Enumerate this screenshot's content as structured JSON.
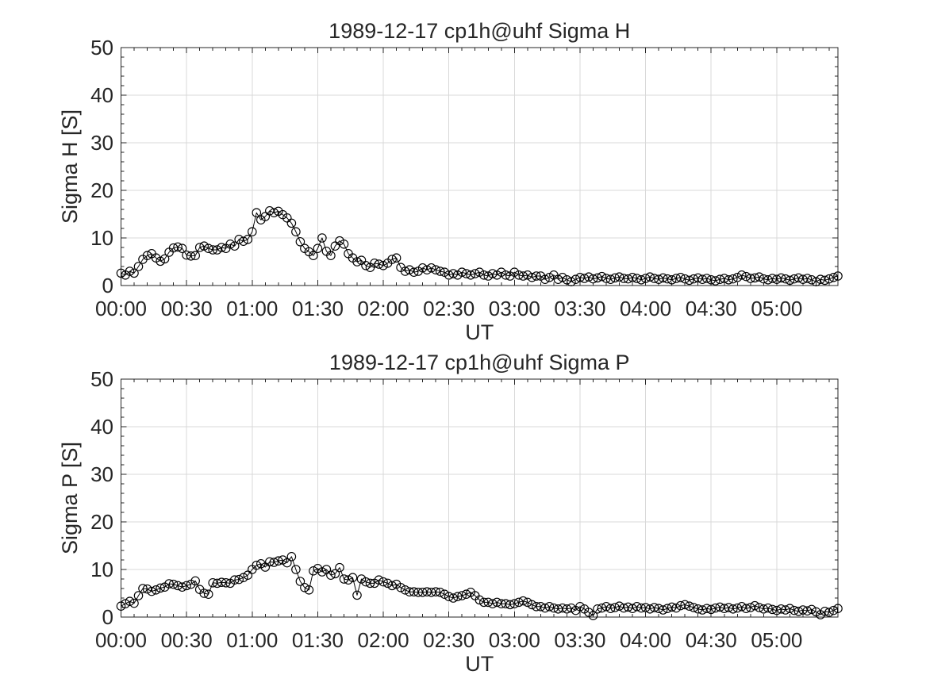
{
  "figure": {
    "background_color": "#ffffff",
    "axis_color": "#262626",
    "grid_color": "#d9d9d9",
    "data_color": "#000000"
  },
  "chart_data": [
    {
      "type": "line",
      "title": "1989-12-17  cp1h@uhf Sigma H",
      "xlabel": "UT",
      "ylabel": "Sigma H [S]",
      "ylim": [
        0,
        50
      ],
      "yticks": [
        0,
        10,
        20,
        30,
        40,
        50
      ],
      "ytick_labels": [
        "0",
        "10",
        "20",
        "30",
        "40",
        "50"
      ],
      "xlim_minutes": [
        0,
        328
      ],
      "xticks_minutes": [
        0,
        30,
        60,
        90,
        120,
        150,
        180,
        210,
        240,
        270,
        300
      ],
      "xtick_labels": [
        "00:00",
        "00:30",
        "01:00",
        "01:30",
        "02:00",
        "02:30",
        "03:00",
        "03:30",
        "04:00",
        "04:30",
        "05:00"
      ],
      "x_minor_step_minutes": 6,
      "y_minor_step": 2,
      "grid": true,
      "marker": "open-circle",
      "x_start": "00:00",
      "x_step_minutes": 2,
      "values": [
        2.6,
        2.2,
        3.0,
        2.6,
        4.0,
        5.5,
        6.3,
        6.7,
        5.8,
        5.1,
        5.6,
        7.0,
        7.9,
        8.1,
        7.8,
        6.4,
        6.2,
        6.3,
        8.0,
        8.3,
        7.8,
        7.5,
        7.5,
        8.0,
        7.8,
        8.7,
        8.3,
        9.7,
        9.3,
        9.7,
        11.3,
        15.3,
        13.8,
        14.5,
        15.7,
        15.3,
        15.6,
        14.9,
        14.2,
        13.1,
        11.3,
        9.2,
        7.8,
        7.1,
        6.3,
        7.8,
        10.0,
        7.2,
        6.3,
        8.3,
        9.4,
        8.7,
        6.7,
        5.8,
        5.0,
        5.3,
        4.2,
        3.8,
        4.7,
        4.5,
        4.2,
        4.7,
        5.5,
        5.8,
        3.8,
        3.0,
        3.3,
        2.8,
        3.0,
        3.7,
        3.3,
        3.7,
        3.3,
        3.0,
        2.8,
        2.2,
        2.5,
        2.2,
        2.8,
        2.5,
        2.2,
        2.5,
        2.8,
        2.2,
        2.0,
        2.5,
        2.2,
        2.8,
        2.2,
        2.0,
        2.8,
        2.2,
        2.0,
        2.2,
        1.7,
        2.0,
        2.0,
        1.3,
        1.7,
        2.2,
        1.3,
        1.7,
        1.2,
        0.8,
        1.3,
        1.7,
        1.5,
        1.8,
        1.4,
        1.6,
        1.9,
        1.5,
        1.3,
        1.6,
        1.8,
        1.5,
        1.4,
        1.7,
        1.5,
        1.2,
        1.5,
        1.8,
        1.5,
        1.3,
        1.6,
        1.4,
        1.2,
        1.5,
        1.7,
        1.4,
        1.1,
        1.4,
        1.6,
        1.3,
        1.5,
        1.2,
        1.0,
        1.3,
        1.5,
        1.2,
        1.4,
        1.7,
        2.2,
        1.9,
        1.5,
        1.6,
        1.8,
        1.4,
        1.2,
        1.5,
        1.3,
        1.6,
        1.4,
        1.1,
        1.4,
        1.6,
        1.3,
        1.5,
        1.2,
        0.8,
        1.3,
        1.1,
        1.4,
        1.7,
        2.0
      ]
    },
    {
      "type": "line",
      "title": "1989-12-17  cp1h@uhf Sigma P",
      "xlabel": "UT",
      "ylabel": "Sigma P [S]",
      "ylim": [
        0,
        50
      ],
      "yticks": [
        0,
        10,
        20,
        30,
        40,
        50
      ],
      "ytick_labels": [
        "0",
        "10",
        "20",
        "30",
        "40",
        "50"
      ],
      "xlim_minutes": [
        0,
        328
      ],
      "xticks_minutes": [
        0,
        30,
        60,
        90,
        120,
        150,
        180,
        210,
        240,
        270,
        300
      ],
      "xtick_labels": [
        "00:00",
        "00:30",
        "01:00",
        "01:30",
        "02:00",
        "02:30",
        "03:00",
        "03:30",
        "04:00",
        "04:30",
        "05:00"
      ],
      "x_minor_step_minutes": 6,
      "y_minor_step": 2,
      "grid": true,
      "marker": "open-circle",
      "x_start": "00:00",
      "x_step_minutes": 2,
      "values": [
        2.3,
        2.8,
        3.3,
        2.9,
        4.5,
        6.0,
        5.9,
        5.4,
        5.7,
        6.1,
        6.3,
        7.0,
        6.9,
        6.6,
        6.3,
        6.6,
        6.9,
        7.6,
        5.8,
        5.0,
        4.8,
        7.2,
        7.1,
        7.3,
        7.2,
        7.1,
        7.8,
        7.9,
        8.3,
        8.8,
        10.0,
        10.9,
        11.2,
        10.5,
        11.6,
        11.5,
        11.8,
        12.0,
        11.4,
        12.7,
        10.0,
        7.5,
        6.2,
        5.7,
        9.7,
        10.2,
        9.5,
        10.0,
        8.8,
        9.1,
        10.4,
        8.0,
        7.8,
        8.3,
        4.6,
        8.0,
        7.4,
        7.1,
        7.1,
        7.8,
        7.4,
        7.1,
        6.6,
        6.9,
        6.2,
        5.7,
        5.3,
        5.3,
        5.2,
        5.2,
        5.3,
        5.2,
        5.3,
        5.2,
        4.8,
        4.3,
        4.0,
        4.3,
        4.5,
        4.8,
        5.2,
        4.5,
        3.6,
        3.1,
        3.1,
        2.8,
        3.1,
        2.8,
        2.8,
        2.6,
        2.8,
        3.1,
        3.4,
        3.1,
        2.6,
        2.2,
        2.2,
        1.9,
        2.2,
        1.9,
        1.7,
        1.9,
        1.7,
        1.9,
        1.4,
        2.2,
        1.7,
        1.0,
        0.3,
        1.7,
        1.9,
        2.2,
        1.8,
        2.0,
        2.3,
        1.9,
        2.1,
        1.8,
        2.2,
        1.9,
        2.0,
        1.7,
        2.0,
        1.8,
        1.5,
        1.8,
        2.1,
        1.9,
        2.4,
        2.6,
        2.3,
        2.0,
        1.7,
        1.5,
        1.8,
        1.6,
        1.9,
        2.1,
        1.8,
        2.0,
        1.7,
        1.9,
        2.2,
        1.8,
        2.0,
        2.4,
        2.0,
        1.7,
        1.9,
        1.6,
        1.4,
        1.7,
        1.5,
        1.8,
        1.4,
        1.2,
        1.5,
        1.3,
        1.6,
        1.1,
        0.5,
        1.2,
        1.0,
        1.4,
        1.8
      ]
    }
  ]
}
